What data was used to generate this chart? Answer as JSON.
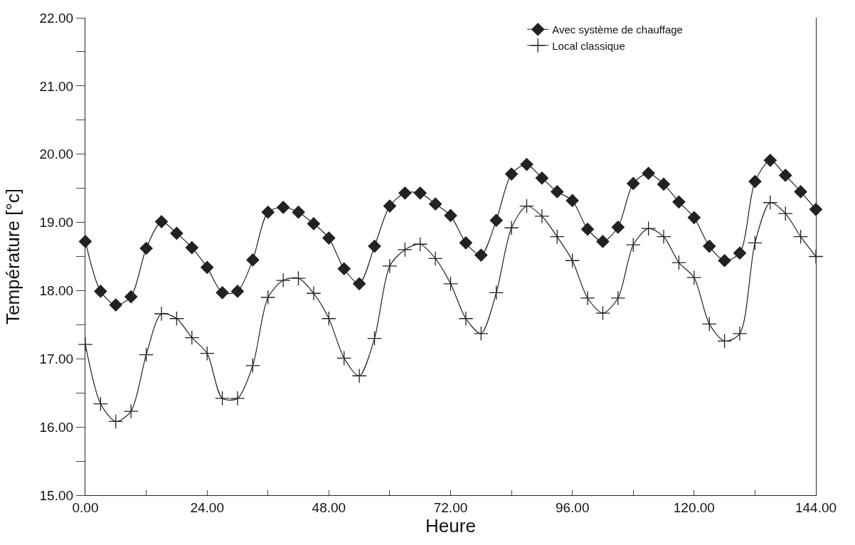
{
  "chart_data": {
    "type": "line",
    "xlabel": "Heure",
    "ylabel": "Température [°c]",
    "x": [
      0,
      3,
      6,
      9,
      12,
      15,
      18,
      21,
      24,
      27,
      30,
      33,
      36,
      39,
      42,
      45,
      48,
      51,
      54,
      57,
      60,
      63,
      66,
      69,
      72,
      75,
      78,
      81,
      84,
      87,
      90,
      93,
      96,
      99,
      102,
      105,
      108,
      111,
      114,
      117,
      120,
      123,
      126,
      129,
      132,
      135,
      138,
      141,
      144
    ],
    "series": [
      {
        "name": "Avec système de chauffage",
        "color": "#222222",
        "marker": "diamond",
        "values": [
          18.72,
          17.99,
          17.79,
          17.91,
          18.62,
          19.01,
          18.84,
          18.63,
          18.34,
          17.97,
          17.99,
          18.45,
          19.15,
          19.22,
          19.15,
          18.98,
          18.77,
          18.32,
          18.1,
          18.65,
          19.24,
          19.43,
          19.43,
          19.27,
          19.1,
          18.7,
          18.52,
          19.03,
          19.71,
          19.85,
          19.65,
          19.45,
          19.32,
          18.9,
          18.72,
          18.93,
          19.57,
          19.72,
          19.56,
          19.3,
          19.07,
          18.65,
          18.44,
          18.55,
          19.6,
          19.91,
          19.69,
          19.45,
          19.19
        ]
      },
      {
        "name": "Local classique",
        "color": "#222222",
        "marker": "cross",
        "values": [
          17.21,
          16.34,
          16.08,
          16.23,
          17.06,
          17.66,
          17.59,
          17.31,
          17.08,
          16.42,
          16.42,
          16.9,
          17.9,
          18.15,
          18.18,
          17.96,
          17.59,
          17.01,
          16.75,
          17.3,
          18.36,
          18.6,
          18.68,
          18.47,
          18.1,
          17.59,
          17.37,
          17.97,
          18.92,
          19.24,
          19.09,
          18.79,
          18.44,
          17.89,
          17.67,
          17.89,
          18.67,
          18.91,
          18.79,
          18.41,
          18.19,
          17.51,
          17.26,
          17.37,
          18.7,
          19.29,
          19.13,
          18.79,
          18.5
        ]
      }
    ],
    "xlim": [
      0,
      144
    ],
    "xticks": [
      {
        "value": 0,
        "label": "0.00"
      },
      {
        "value": 12,
        "label": null
      },
      {
        "value": 24,
        "label": "24.00"
      },
      {
        "value": 36,
        "label": null
      },
      {
        "value": 48,
        "label": "48.00"
      },
      {
        "value": 60,
        "label": null
      },
      {
        "value": 72,
        "label": "72.00"
      },
      {
        "value": 84,
        "label": null
      },
      {
        "value": 96,
        "label": "96.00"
      },
      {
        "value": 108,
        "label": null
      },
      {
        "value": 120,
        "label": "120.00"
      },
      {
        "value": 132,
        "label": null
      },
      {
        "value": 144,
        "label": "144.00"
      }
    ],
    "ylim": [
      15,
      22
    ],
    "yticks": [
      {
        "value": 15,
        "label": "15.00"
      },
      {
        "value": 15.5,
        "label": null
      },
      {
        "value": 16,
        "label": "16.00"
      },
      {
        "value": 16.5,
        "label": null
      },
      {
        "value": 17,
        "label": "17.00"
      },
      {
        "value": 17.5,
        "label": null
      },
      {
        "value": 18,
        "label": "18.00"
      },
      {
        "value": 18.5,
        "label": null
      },
      {
        "value": 19,
        "label": "19.00"
      },
      {
        "value": 19.5,
        "label": null
      },
      {
        "value": 20,
        "label": "20.00"
      },
      {
        "value": 20.5,
        "label": null
      },
      {
        "value": 21,
        "label": "21.00"
      },
      {
        "value": 21.5,
        "label": null
      },
      {
        "value": 22,
        "label": "22.00"
      }
    ],
    "legend": "top right",
    "line_style": "solid"
  }
}
